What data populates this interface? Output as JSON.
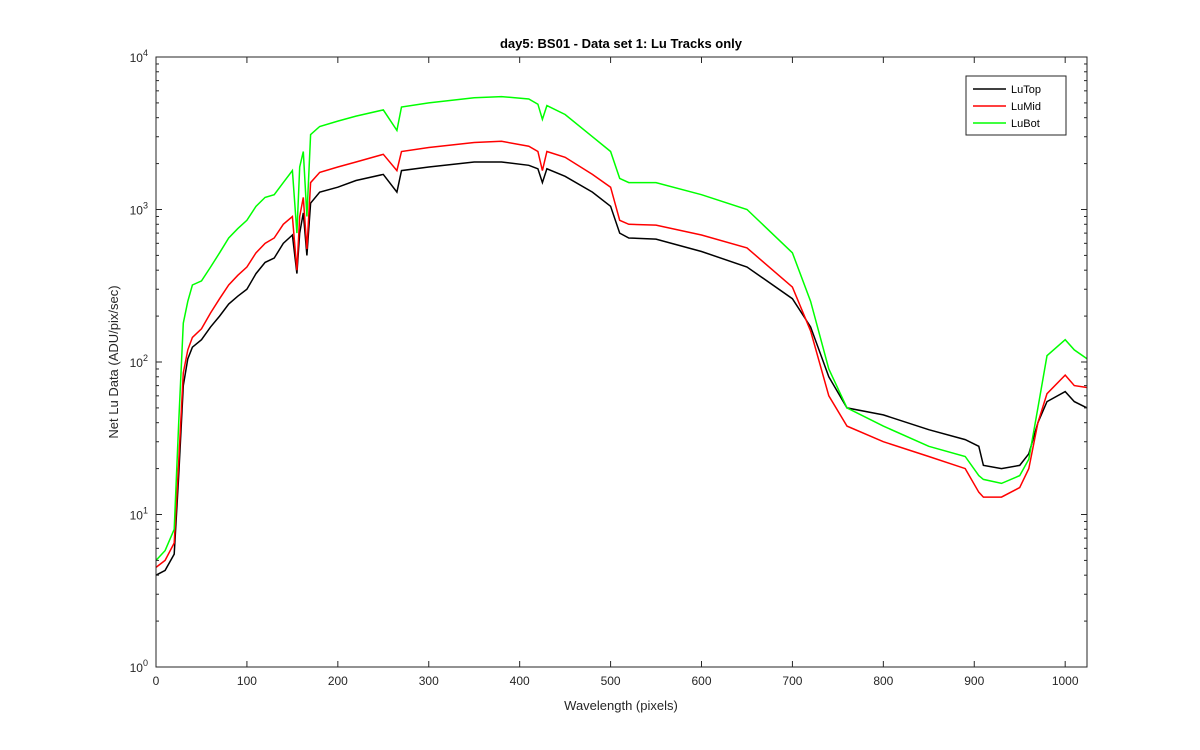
{
  "chart_data": {
    "type": "line",
    "title": "day5: BS01 - Data set 1: Lu Tracks only",
    "xlabel": "Wavelength (pixels)",
    "ylabel": "Net Lu Data (ADU/pix/sec)",
    "xlim": [
      0,
      1024
    ],
    "ylim": [
      1,
      10000
    ],
    "yscale": "log",
    "xticks": [
      0,
      100,
      200,
      300,
      400,
      500,
      600,
      700,
      800,
      900,
      1000
    ],
    "yticks": [
      {
        "value": 1,
        "base": "10",
        "exp": "0"
      },
      {
        "value": 10,
        "base": "10",
        "exp": "1"
      },
      {
        "value": 100,
        "base": "10",
        "exp": "2"
      },
      {
        "value": 1000,
        "base": "10",
        "exp": "3"
      },
      {
        "value": 10000,
        "base": "10",
        "exp": "4"
      }
    ],
    "grid": false,
    "legend_position": "top-right",
    "series": [
      {
        "name": "LuTop",
        "color": "#000000",
        "x": [
          0,
          10,
          20,
          25,
          30,
          35,
          40,
          50,
          60,
          70,
          80,
          90,
          100,
          110,
          120,
          130,
          140,
          150,
          155,
          158,
          162,
          166,
          170,
          180,
          200,
          220,
          250,
          265,
          270,
          300,
          350,
          380,
          410,
          420,
          425,
          430,
          450,
          480,
          500,
          510,
          520,
          550,
          600,
          650,
          700,
          720,
          740,
          760,
          800,
          850,
          890,
          905,
          910,
          930,
          950,
          960,
          970,
          980,
          1000,
          1010,
          1024
        ],
        "y": [
          4.0,
          4.3,
          5.5,
          18,
          70,
          105,
          125,
          140,
          170,
          200,
          240,
          270,
          300,
          380,
          450,
          480,
          600,
          680,
          380,
          700,
          950,
          500,
          1100,
          1300,
          1400,
          1550,
          1700,
          1300,
          1800,
          1900,
          2050,
          2050,
          1950,
          1850,
          1500,
          1850,
          1650,
          1300,
          1050,
          700,
          650,
          640,
          530,
          420,
          260,
          170,
          80,
          50,
          45,
          36,
          31,
          28,
          21,
          20,
          21,
          25,
          40,
          55,
          64,
          55,
          50
        ]
      },
      {
        "name": "LuMid",
        "color": "#ff0000",
        "x": [
          0,
          10,
          20,
          25,
          30,
          35,
          40,
          50,
          60,
          70,
          80,
          90,
          100,
          110,
          120,
          130,
          140,
          150,
          155,
          158,
          162,
          166,
          170,
          180,
          200,
          220,
          250,
          265,
          270,
          300,
          350,
          380,
          410,
          420,
          425,
          430,
          450,
          480,
          500,
          510,
          520,
          550,
          600,
          650,
          700,
          720,
          740,
          760,
          800,
          850,
          890,
          905,
          910,
          930,
          950,
          960,
          970,
          980,
          1000,
          1010,
          1024
        ],
        "y": [
          4.5,
          5.0,
          6.5,
          22,
          85,
          120,
          145,
          165,
          210,
          260,
          320,
          370,
          420,
          520,
          600,
          650,
          800,
          900,
          400,
          900,
          1200,
          550,
          1500,
          1750,
          1900,
          2050,
          2300,
          1800,
          2400,
          2550,
          2750,
          2800,
          2600,
          2400,
          1800,
          2400,
          2200,
          1700,
          1400,
          850,
          800,
          790,
          680,
          560,
          310,
          160,
          60,
          38,
          30,
          24,
          20,
          14,
          13,
          13,
          15,
          20,
          40,
          62,
          82,
          70,
          68
        ]
      },
      {
        "name": "LuBot",
        "color": "#00ff00",
        "x": [
          0,
          10,
          20,
          25,
          30,
          35,
          40,
          50,
          60,
          70,
          80,
          90,
          100,
          110,
          120,
          130,
          140,
          150,
          155,
          158,
          162,
          166,
          170,
          180,
          200,
          220,
          250,
          265,
          270,
          300,
          350,
          380,
          410,
          420,
          425,
          430,
          450,
          480,
          500,
          510,
          520,
          550,
          600,
          650,
          700,
          720,
          740,
          760,
          800,
          850,
          890,
          905,
          910,
          930,
          950,
          960,
          970,
          980,
          1000,
          1010,
          1024
        ],
        "y": [
          5.0,
          5.8,
          8,
          40,
          180,
          250,
          320,
          340,
          420,
          520,
          650,
          750,
          850,
          1050,
          1200,
          1250,
          1500,
          1800,
          700,
          1900,
          2400,
          900,
          3100,
          3500,
          3800,
          4100,
          4500,
          3300,
          4700,
          5000,
          5400,
          5500,
          5300,
          4900,
          3900,
          4800,
          4200,
          3000,
          2400,
          1600,
          1500,
          1500,
          1250,
          1000,
          520,
          250,
          90,
          50,
          38,
          28,
          24,
          18,
          17,
          16,
          18,
          23,
          50,
          110,
          140,
          120,
          105
        ]
      }
    ]
  }
}
